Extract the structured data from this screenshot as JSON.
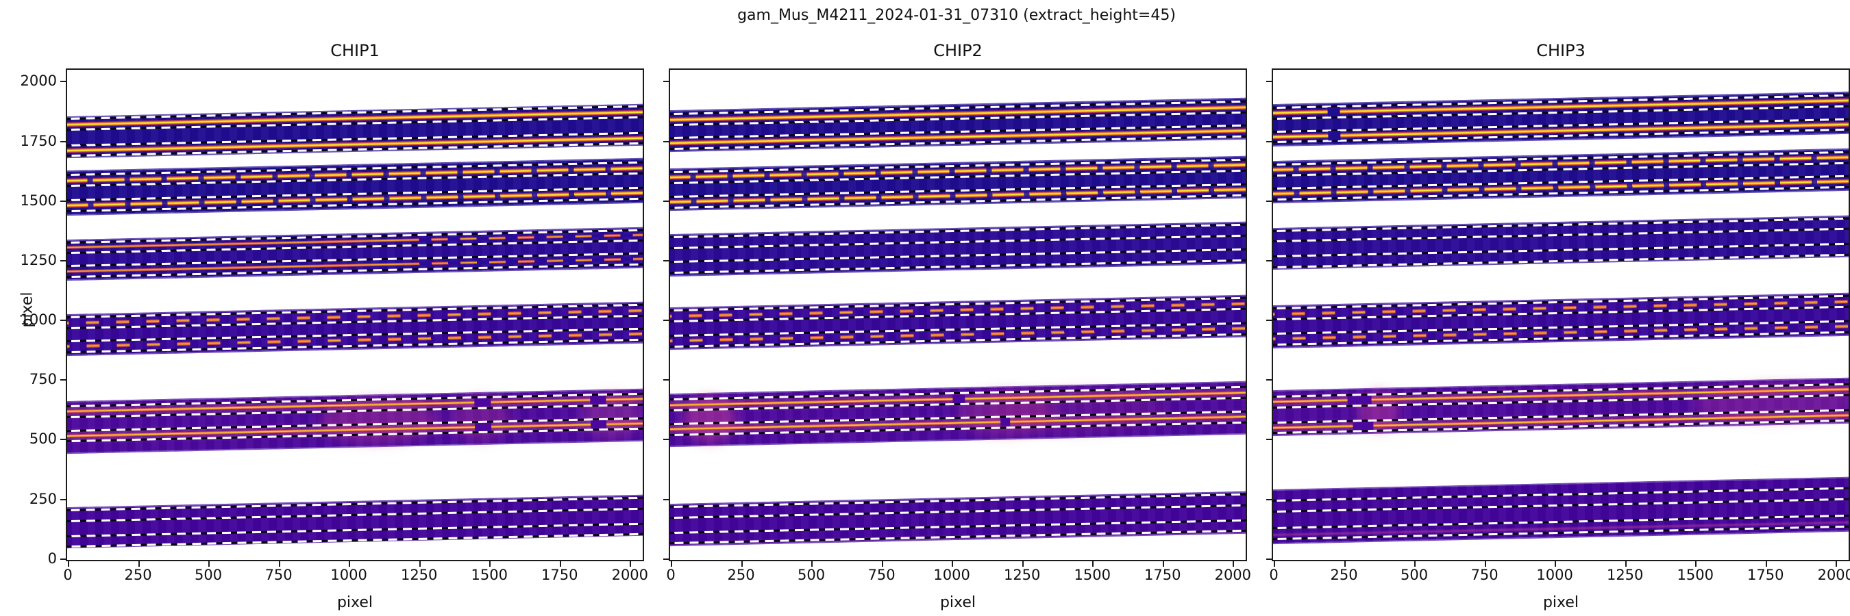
{
  "title": "gam_Mus_M4211_2024-01-31_07310  (extract_height=45)",
  "colors": {
    "background": "#ffffff",
    "spine": "#1a1a1a",
    "text": "#111111",
    "dashed_window_line": "#ffffff",
    "order_dark_blue": "#200d92",
    "order_indigo": "#2b0a97",
    "order_purple": "#38069b",
    "order_bright_purple": "#4c089e",
    "trace_yellow": "#f8ec28",
    "trace_orange": "#fbaf2e",
    "magenta_glow": "#bc3a8c"
  },
  "chart_data": {
    "type": "heatmap",
    "title": "gam_Mus_M4211_2024-01-31_07310  (extract_height=45)",
    "xlabel": "pixel",
    "ylabel": "pixel",
    "extract_height": 45,
    "half_window": 22.5,
    "xlim": [
      0,
      2048
    ],
    "ylim": [
      -9.5,
      2044
    ],
    "xticks": [
      0,
      250,
      500,
      750,
      1000,
      1250,
      1500,
      1750,
      2000
    ],
    "yticks": [
      0,
      250,
      500,
      750,
      1000,
      1250,
      1500,
      1750,
      2000
    ],
    "grid": false,
    "legend": "none",
    "order_tilt_deg": -1.25,
    "panels": [
      {
        "label": "CHIP1",
        "orders": [
          {
            "y0": 1673,
            "y1": 1849,
            "bg": "#200d92",
            "traces": [
              {
                "y": 1816,
                "s": "bright"
              },
              {
                "y": 1706,
                "s": "bright"
              }
            ]
          },
          {
            "y0": 1434,
            "y1": 1622,
            "bg": "#200d92",
            "traces": [
              {
                "y": 1580,
                "s": "bdash"
              },
              {
                "y": 1475,
                "s": "bdash"
              }
            ]
          },
          {
            "y0": 1162,
            "y1": 1334,
            "bg": "#2b0a97",
            "traces": [
              {
                "y": 1300,
                "s": "faint"
              },
              {
                "y": 1200,
                "s": "faint"
              }
            ]
          },
          {
            "y0": 846,
            "y1": 1020,
            "bg": "#38069b",
            "traces": [
              {
                "y": 984,
                "s": "odash"
              },
              {
                "y": 884,
                "s": "odash"
              }
            ]
          },
          {
            "y0": 434,
            "y1": 655,
            "bg": "#4c089e",
            "traces": [
              {
                "y": 611,
                "s": "hot",
                "gaps": [
                  [
                    1450,
                    1508
                  ],
                  [
                    1862,
                    1918
                  ]
                ]
              },
              {
                "y": 509,
                "s": "hot",
                "gaps": [
                  [
                    1450,
                    1508
                  ],
                  [
                    1862,
                    1918
                  ]
                ]
              }
            ],
            "patches": [
              {
                "x": 0.44,
                "w": 0.2,
                "c": "rgba(188,58,140,0.38)"
              },
              {
                "x": 0.66,
                "w": 0.1,
                "c": "rgba(188,58,140,0.30)"
              },
              {
                "x": 0.88,
                "w": 0.1,
                "c": "rgba(205,80,150,0.30)"
              }
            ]
          },
          {
            "y0": 38,
            "y1": 210,
            "bg": "#43049c",
            "windows": [
              175,
              67
            ]
          }
        ]
      },
      {
        "label": "CHIP2",
        "orders": [
          {
            "y0": 1698,
            "y1": 1874,
            "bg": "#200d92",
            "traces": [
              {
                "y": 1835,
                "s": "bright"
              },
              {
                "y": 1735,
                "s": "bright"
              }
            ]
          },
          {
            "y0": 1455,
            "y1": 1632,
            "bg": "#200d92",
            "traces": [
              {
                "y": 1594,
                "s": "bdash"
              },
              {
                "y": 1491,
                "s": "bdash"
              }
            ]
          },
          {
            "y0": 1180,
            "y1": 1357,
            "bg": "#2b0a97",
            "windows": [
              1322,
              1218
            ]
          },
          {
            "y0": 870,
            "y1": 1048,
            "bg": "#38069b",
            "traces": [
              {
                "y": 1012,
                "s": "odash"
              },
              {
                "y": 907,
                "s": "odash"
              }
            ]
          },
          {
            "y0": 465,
            "y1": 688,
            "bg": "#4c089e",
            "traces": [
              {
                "y": 640,
                "s": "hot",
                "gaps": [
                  [
                    1008,
                    1052
                  ]
                ]
              },
              {
                "y": 538,
                "s": "hot",
                "gaps": [
                  [
                    1175,
                    1210
                  ]
                ]
              }
            ],
            "patches": [
              {
                "x": 0.04,
                "w": 0.09,
                "c": "rgba(200,62,150,0.50)"
              },
              {
                "x": 0.5,
                "w": 0.16,
                "c": "rgba(188,58,140,0.35)"
              },
              {
                "x": 0.55,
                "w": 0.3,
                "c": "rgba(160,40,130,0.22)"
              }
            ]
          },
          {
            "y0": 48,
            "y1": 225,
            "bg": "#43049c",
            "windows": [
              190,
              82
            ],
            "streaks": [
              {
                "y": 60,
                "c": "rgba(196,64,148,0.40)"
              }
            ]
          }
        ]
      },
      {
        "label": "CHIP3",
        "orders": [
          {
            "y0": 1725,
            "y1": 1902,
            "bg": "#200d92",
            "traces": [
              {
                "y": 1864,
                "s": "bright",
                "gaps": [
                  [
                    196,
                    238
                  ]
                ]
              },
              {
                "y": 1764,
                "s": "bright",
                "gaps": [
                  [
                    196,
                    238
                  ]
                ]
              }
            ]
          },
          {
            "y0": 1486,
            "y1": 1663,
            "bg": "#200d92",
            "traces": [
              {
                "y": 1625,
                "s": "bdash"
              },
              {
                "y": 1524,
                "s": "bdash"
              }
            ]
          },
          {
            "y0": 1206,
            "y1": 1381,
            "bg": "#2b0a97",
            "windows": [
              1347,
              1240
            ]
          },
          {
            "y0": 876,
            "y1": 1056,
            "bg": "#38069b",
            "traces": [
              {
                "y": 1020,
                "s": "odash"
              },
              {
                "y": 915,
                "s": "odash"
              }
            ]
          },
          {
            "y0": 511,
            "y1": 703,
            "bg": "#4c089e",
            "traces": [
              {
                "y": 653,
                "s": "hot",
                "gaps": [
                  [
                    266,
                    352
                  ]
                ]
              },
              {
                "y": 545,
                "s": "hot",
                "gaps": [
                  [
                    282,
                    356
                  ]
                ]
              }
            ],
            "patches": [
              {
                "x": 0.16,
                "w": 0.07,
                "c": "rgba(200,62,150,0.45)"
              },
              {
                "x": 0.72,
                "w": 0.27,
                "c": "rgba(200,62,150,0.28)"
              }
            ]
          },
          {
            "y0": 55,
            "y1": 285,
            "bg": "#43049c",
            "windows": [
              215,
              100
            ],
            "streaks": [
              {
                "y": 95,
                "c": "rgba(205,70,152,0.55)"
              }
            ]
          }
        ]
      }
    ]
  }
}
